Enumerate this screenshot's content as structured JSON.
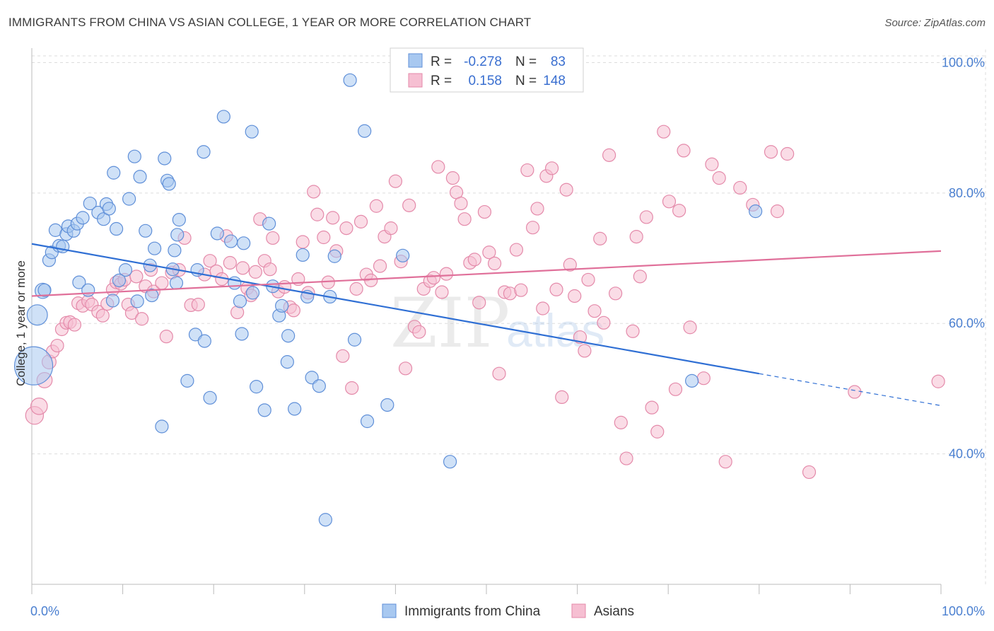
{
  "header": {
    "title": "IMMIGRANTS FROM CHINA VS ASIAN COLLEGE, 1 YEAR OR MORE CORRELATION CHART",
    "source": "Source: ZipAtlas.com"
  },
  "colors": {
    "series_a_fill": "#a8c8f0",
    "series_a_stroke": "#5f8fd8",
    "series_a_line": "#2f6fd4",
    "series_b_fill": "#f6bfd2",
    "series_b_stroke": "#e48aaa",
    "series_b_line": "#e0709a",
    "axis_text": "#4a7fd0",
    "grid": "#dddddd"
  },
  "legend": {
    "row_a": {
      "r_label": "R =",
      "r_value": "-0.278",
      "n_label": "N =",
      "n_value": "83"
    },
    "row_b": {
      "r_label": "R =",
      "r_value": "0.158",
      "n_label": "N =",
      "n_value": "148"
    }
  },
  "bottom_legend": {
    "a_label": "Immigrants from China",
    "b_label": "Asians"
  },
  "watermark": {
    "zip": "ZIP",
    "atlas": "atlas"
  },
  "chart_data": {
    "type": "scatter",
    "title": "IMMIGRANTS FROM CHINA VS ASIAN COLLEGE, 1 YEAR OR MORE CORRELATION CHART",
    "xlabel": "",
    "ylabel": "College, 1 year or more",
    "xlim": [
      0,
      100
    ],
    "ylim": [
      20,
      102
    ],
    "x_tick_labels": [
      "0.0%",
      "100.0%"
    ],
    "y_ticks": [
      40,
      60,
      80,
      100
    ],
    "y_tick_labels": [
      "40.0%",
      "60.0%",
      "80.0%",
      "100.0%"
    ],
    "grid": true,
    "legend_position": "top-center",
    "series": [
      {
        "name": "Immigrants from China",
        "color": "blue",
        "r": -0.278,
        "n": 83,
        "trend": {
          "x0": 0,
          "y0": 72.2,
          "x1": 80,
          "y1": 52.3,
          "dashed_to_x": 100,
          "dashed_to_y": 47.4
        },
        "points": [
          [
            0.2,
            53.5,
            3
          ],
          [
            0.6,
            61.3,
            1.6
          ],
          [
            1.2,
            65,
            1.2
          ],
          [
            1.4,
            65.1,
            1
          ],
          [
            1.9,
            69.7,
            1
          ],
          [
            2.2,
            70.9,
            1
          ],
          [
            2.6,
            74.3,
            1
          ],
          [
            3,
            71.9,
            1
          ],
          [
            3.4,
            71.8,
            1
          ],
          [
            3.8,
            73.7,
            1
          ],
          [
            4,
            74.9,
            1
          ],
          [
            4.6,
            74.2,
            1
          ],
          [
            5,
            75.3,
            1
          ],
          [
            5.6,
            76.2,
            1
          ],
          [
            6.4,
            78.4,
            1
          ],
          [
            7.3,
            77,
            1
          ],
          [
            7.9,
            76,
            1
          ],
          [
            8.2,
            78.3,
            1
          ],
          [
            8.5,
            77.6,
            1
          ],
          [
            9,
            83.1,
            1
          ],
          [
            9.3,
            74.5,
            1
          ],
          [
            10.3,
            68.2,
            1
          ],
          [
            10.7,
            79.1,
            1
          ],
          [
            11.3,
            85.6,
            1
          ],
          [
            11.9,
            82.5,
            1
          ],
          [
            12.5,
            74.2,
            1
          ],
          [
            13,
            68.9,
            1
          ],
          [
            13.2,
            64.3,
            1
          ],
          [
            13.5,
            71.5,
            1
          ],
          [
            14.3,
            44.2,
            1
          ],
          [
            14.6,
            85.3,
            1
          ],
          [
            14.9,
            81.9,
            1
          ],
          [
            15.1,
            81.4,
            1
          ],
          [
            15.5,
            68.3,
            1
          ],
          [
            15.7,
            71.2,
            1
          ],
          [
            16,
            73.6,
            1
          ],
          [
            16.2,
            75.9,
            1
          ],
          [
            17.1,
            51.2,
            1
          ],
          [
            18,
            58.3,
            1
          ],
          [
            18.9,
            86.3,
            1
          ],
          [
            19,
            57.3,
            1
          ],
          [
            19.6,
            48.6,
            1
          ],
          [
            20.4,
            73.8,
            1
          ],
          [
            21.1,
            91.7,
            1
          ],
          [
            21.9,
            72.6,
            1
          ],
          [
            22.3,
            66.2,
            1
          ],
          [
            22.9,
            63.4,
            1
          ],
          [
            23.1,
            58.4,
            1
          ],
          [
            23.3,
            72.3,
            1
          ],
          [
            24.2,
            89.4,
            1
          ],
          [
            24.7,
            50.3,
            1
          ],
          [
            25.6,
            46.7,
            1
          ],
          [
            26.1,
            75.3,
            1
          ],
          [
            26.5,
            65.7,
            1
          ],
          [
            27.2,
            61.2,
            1
          ],
          [
            27.5,
            62.7,
            1
          ],
          [
            28.1,
            54.1,
            1
          ],
          [
            28.2,
            58.1,
            1
          ],
          [
            28.9,
            46.9,
            1
          ],
          [
            29.8,
            70.5,
            1
          ],
          [
            30.3,
            64.1,
            1
          ],
          [
            30.8,
            51.7,
            1
          ],
          [
            31.6,
            50.4,
            1
          ],
          [
            32.3,
            29.9,
            1
          ],
          [
            32.8,
            64.1,
            1
          ],
          [
            33.3,
            70.3,
            1
          ],
          [
            35,
            97.3,
            1
          ],
          [
            35.5,
            57.5,
            1
          ],
          [
            36.6,
            89.5,
            1
          ],
          [
            36.9,
            45,
            1
          ],
          [
            39.1,
            47.5,
            1
          ],
          [
            40.8,
            70.4,
            1
          ],
          [
            46,
            38.8,
            1
          ],
          [
            72.6,
            51.2,
            1
          ],
          [
            79.6,
            77.2,
            1
          ],
          [
            9.6,
            66.6,
            1
          ],
          [
            5.2,
            66.3,
            1
          ],
          [
            6.2,
            65.1,
            1
          ],
          [
            8.9,
            63.5,
            1
          ],
          [
            11.6,
            63.4,
            1
          ],
          [
            15.9,
            66.2,
            1
          ],
          [
            18.2,
            68.2,
            1
          ],
          [
            24.3,
            64.7,
            1
          ]
        ]
      },
      {
        "name": "Asians",
        "color": "pink",
        "r": 0.158,
        "n": 148,
        "trend": {
          "x0": 0,
          "y0": 64.2,
          "x1": 100,
          "y1": 71.1
        },
        "points": [
          [
            0.3,
            45.9,
            1.4
          ],
          [
            0.8,
            47.3,
            1.3
          ],
          [
            1.4,
            51.3,
            1.2
          ],
          [
            1.9,
            54.1,
            1.1
          ],
          [
            2.3,
            55.7,
            1
          ],
          [
            2.8,
            56.6,
            1
          ],
          [
            3.3,
            59.1,
            1
          ],
          [
            3.8,
            60.1,
            1
          ],
          [
            4.2,
            60.2,
            1
          ],
          [
            4.7,
            59.8,
            1
          ],
          [
            5.1,
            63.1,
            1
          ],
          [
            5.6,
            62.7,
            1
          ],
          [
            6.2,
            63.4,
            1
          ],
          [
            6.6,
            62.9,
            1
          ],
          [
            7.3,
            61.8,
            1
          ],
          [
            7.8,
            61.2,
            1
          ],
          [
            8.3,
            63,
            1
          ],
          [
            8.9,
            65.2,
            1
          ],
          [
            9.3,
            66.3,
            1
          ],
          [
            9.8,
            66.1,
            1
          ],
          [
            10.2,
            66.7,
            1
          ],
          [
            10.6,
            62.9,
            1
          ],
          [
            11,
            61.6,
            1
          ],
          [
            11.5,
            67.2,
            1
          ],
          [
            12.1,
            60.7,
            1
          ],
          [
            12.5,
            65.7,
            1
          ],
          [
            13.1,
            68.2,
            1
          ],
          [
            13.4,
            64.9,
            1
          ],
          [
            14.3,
            66.2,
            1
          ],
          [
            14.8,
            58,
            1
          ],
          [
            15.4,
            67.8,
            1
          ],
          [
            16.2,
            68.2,
            1
          ],
          [
            16.8,
            73.1,
            1
          ],
          [
            17.5,
            62.8,
            1
          ],
          [
            18.3,
            62.9,
            1
          ],
          [
            19,
            67.5,
            1
          ],
          [
            19.6,
            69.6,
            1
          ],
          [
            20.3,
            68,
            1
          ],
          [
            20.9,
            66.8,
            1
          ],
          [
            21.4,
            73.4,
            1
          ],
          [
            21.8,
            69.3,
            1
          ],
          [
            22.6,
            61.7,
            1
          ],
          [
            23.2,
            68.5,
            1
          ],
          [
            23.7,
            65.4,
            1
          ],
          [
            24.1,
            64.3,
            1
          ],
          [
            24.6,
            67.9,
            1
          ],
          [
            25.1,
            76,
            1
          ],
          [
            25.6,
            69.6,
            1
          ],
          [
            26.2,
            68.3,
            1
          ],
          [
            26.5,
            73.1,
            1
          ],
          [
            27.1,
            64.9,
            1
          ],
          [
            27.8,
            65.6,
            1
          ],
          [
            28.4,
            62.5,
            1
          ],
          [
            28.8,
            62,
            1
          ],
          [
            29.3,
            66.8,
            1
          ],
          [
            29.8,
            72.5,
            1
          ],
          [
            30.4,
            64.7,
            1
          ],
          [
            31,
            80.2,
            1
          ],
          [
            31.4,
            76.7,
            1
          ],
          [
            32.1,
            73.2,
            1
          ],
          [
            32.6,
            66.3,
            1
          ],
          [
            33.1,
            76.2,
            1
          ],
          [
            33.5,
            71.1,
            1
          ],
          [
            34.2,
            55,
            1
          ],
          [
            34.6,
            74.6,
            1
          ],
          [
            35.2,
            50.1,
            1
          ],
          [
            35.7,
            65.3,
            1
          ],
          [
            36.2,
            75.6,
            1
          ],
          [
            36.8,
            67.5,
            1
          ],
          [
            37.3,
            66.6,
            1
          ],
          [
            37.9,
            78,
            1
          ],
          [
            38.3,
            68.8,
            1
          ],
          [
            38.8,
            73.3,
            1
          ],
          [
            39.5,
            74.6,
            1
          ],
          [
            40,
            81.8,
            1
          ],
          [
            40.6,
            69.5,
            1
          ],
          [
            41.1,
            53.1,
            1
          ],
          [
            41.5,
            78.1,
            1
          ],
          [
            42.1,
            59.5,
            1
          ],
          [
            42.6,
            58.7,
            1
          ],
          [
            43.1,
            65.3,
            1
          ],
          [
            43.8,
            66.5,
            1
          ],
          [
            44.2,
            67,
            1
          ],
          [
            44.7,
            84,
            1
          ],
          [
            45.1,
            64.8,
            1
          ],
          [
            45.6,
            67.6,
            1
          ],
          [
            46.3,
            82.3,
            1
          ],
          [
            46.7,
            80.1,
            1
          ],
          [
            47.2,
            78.4,
            1
          ],
          [
            47.6,
            76,
            1
          ],
          [
            48.2,
            69.3,
            1
          ],
          [
            48.7,
            69.8,
            1
          ],
          [
            49.2,
            63.2,
            1
          ],
          [
            49.8,
            77.1,
            1
          ],
          [
            50.3,
            70.9,
            1
          ],
          [
            50.9,
            69.2,
            1
          ],
          [
            51.4,
            52.3,
            1
          ],
          [
            52,
            64.8,
            1
          ],
          [
            52.6,
            64.6,
            1
          ],
          [
            53.3,
            71.3,
            1
          ],
          [
            53.8,
            65.1,
            1
          ],
          [
            54.5,
            83.5,
            1
          ],
          [
            55.1,
            74.7,
            1
          ],
          [
            55.6,
            77.6,
            1
          ],
          [
            56.2,
            62.3,
            1
          ],
          [
            56.6,
            82.6,
            1
          ],
          [
            57.2,
            83.8,
            1
          ],
          [
            57.7,
            65.2,
            1
          ],
          [
            58.3,
            48.7,
            1
          ],
          [
            58.8,
            80.5,
            1
          ],
          [
            59.2,
            69,
            1
          ],
          [
            59.7,
            64.2,
            1
          ],
          [
            60.3,
            57.9,
            1
          ],
          [
            60.8,
            55.8,
            1
          ],
          [
            61.2,
            66.7,
            1
          ],
          [
            61.9,
            61.9,
            1
          ],
          [
            62.5,
            73,
            1
          ],
          [
            62.9,
            60.1,
            1
          ],
          [
            63.5,
            85.8,
            1
          ],
          [
            64.2,
            64.6,
            1
          ],
          [
            64.8,
            44.8,
            1
          ],
          [
            65.4,
            39.3,
            1
          ],
          [
            66.1,
            58.8,
            1
          ],
          [
            66.5,
            73.3,
            1
          ],
          [
            66.9,
            67.2,
            1
          ],
          [
            67.6,
            76.3,
            1
          ],
          [
            68.2,
            47.1,
            1
          ],
          [
            68.8,
            43.4,
            1
          ],
          [
            69.5,
            89.4,
            1
          ],
          [
            70.1,
            78.7,
            1
          ],
          [
            70.8,
            49.9,
            1
          ],
          [
            71.2,
            77.3,
            1
          ],
          [
            71.7,
            86.5,
            1
          ],
          [
            72.4,
            59.4,
            1
          ],
          [
            73.9,
            51.6,
            1
          ],
          [
            74.8,
            84.4,
            1
          ],
          [
            75.6,
            82.3,
            1
          ],
          [
            76.3,
            38.8,
            1
          ],
          [
            77.9,
            80.8,
            1
          ],
          [
            79.3,
            78.2,
            1
          ],
          [
            81.3,
            86.3,
            1
          ],
          [
            82,
            77.2,
            1
          ],
          [
            83.1,
            86,
            1
          ],
          [
            85.5,
            37.2,
            1
          ],
          [
            90.5,
            49.5,
            1
          ],
          [
            99.7,
            51.1,
            1
          ]
        ]
      }
    ]
  }
}
